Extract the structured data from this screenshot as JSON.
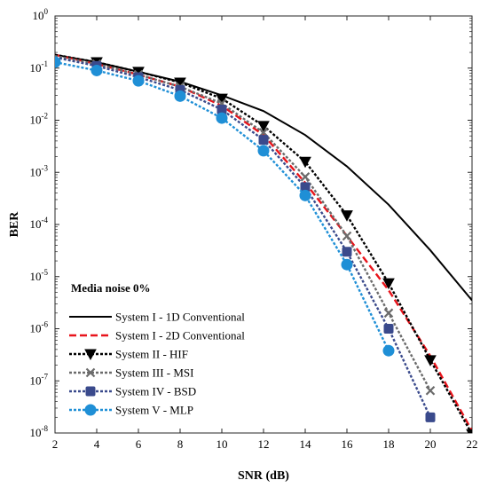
{
  "chart_data": {
    "type": "line",
    "title": "",
    "xlabel": "SNR (dB)",
    "ylabel": "BER",
    "xlim": [
      2,
      22
    ],
    "ylim": [
      1e-08,
      1
    ],
    "yscale": "log",
    "grid": false,
    "xticks": [
      2,
      4,
      6,
      8,
      10,
      12,
      14,
      16,
      18,
      20,
      22
    ],
    "ytick_exponents": [
      0,
      -1,
      -2,
      -3,
      -4,
      -5,
      -6,
      -7,
      -8
    ],
    "ytick_base": "10",
    "legend": {
      "title": "Media noise 0%",
      "placement": "bottom-left"
    },
    "series": [
      {
        "name": "System I - 1D Conventional",
        "color": "#000000",
        "dash": "solid",
        "marker": "none",
        "x": [
          2,
          4,
          6,
          8,
          10,
          12,
          14,
          16,
          18,
          20,
          22
        ],
        "y": [
          0.18,
          0.13,
          0.085,
          0.055,
          0.03,
          0.015,
          0.0052,
          0.0013,
          0.00024,
          3.2e-05,
          3.5e-06
        ]
      },
      {
        "name": "System I - 2D Conventional",
        "color": "#e8141b",
        "dash": "dashed",
        "marker": "none",
        "x": [
          2,
          4,
          6,
          8,
          10,
          12,
          14,
          16,
          18,
          20,
          22
        ],
        "y": [
          0.18,
          0.12,
          0.075,
          0.044,
          0.019,
          0.0052,
          0.00063,
          6e-05,
          5.5e-06,
          3e-07,
          1.1e-08
        ]
      },
      {
        "name": "System II - HIF",
        "color": "#000000",
        "dash": "dotted",
        "marker": "triangle-down",
        "x": [
          2,
          4,
          6,
          8,
          10,
          12,
          14,
          16,
          18,
          20,
          22
        ],
        "y": [
          0.18,
          0.13,
          0.085,
          0.053,
          0.026,
          0.0078,
          0.0016,
          0.00015,
          7.5e-06,
          2.5e-07,
          9.5e-09
        ]
      },
      {
        "name": "System III - MSI",
        "color": "#6b6b6b",
        "dash": "dotted",
        "marker": "x",
        "x": [
          2,
          4,
          6,
          8,
          10,
          12,
          14,
          16,
          18,
          20
        ],
        "y": [
          0.17,
          0.12,
          0.075,
          0.044,
          0.021,
          0.0058,
          0.00082,
          6e-05,
          2e-06,
          6.5e-08
        ]
      },
      {
        "name": "System IV - BSD",
        "color": "#3a4a8c",
        "dash": "dotted",
        "marker": "square",
        "x": [
          2,
          4,
          6,
          8,
          10,
          12,
          14,
          16,
          18,
          20
        ],
        "y": [
          0.16,
          0.11,
          0.067,
          0.038,
          0.016,
          0.0042,
          0.00052,
          3e-05,
          1e-06,
          2e-08
        ]
      },
      {
        "name": "System V - MLP",
        "color": "#1f8fd6",
        "dash": "dotted",
        "marker": "circle",
        "x": [
          2,
          4,
          6,
          8,
          10,
          12,
          14,
          16,
          18
        ],
        "y": [
          0.13,
          0.09,
          0.057,
          0.029,
          0.011,
          0.0026,
          0.00036,
          1.7e-05,
          3.8e-07
        ]
      }
    ]
  }
}
